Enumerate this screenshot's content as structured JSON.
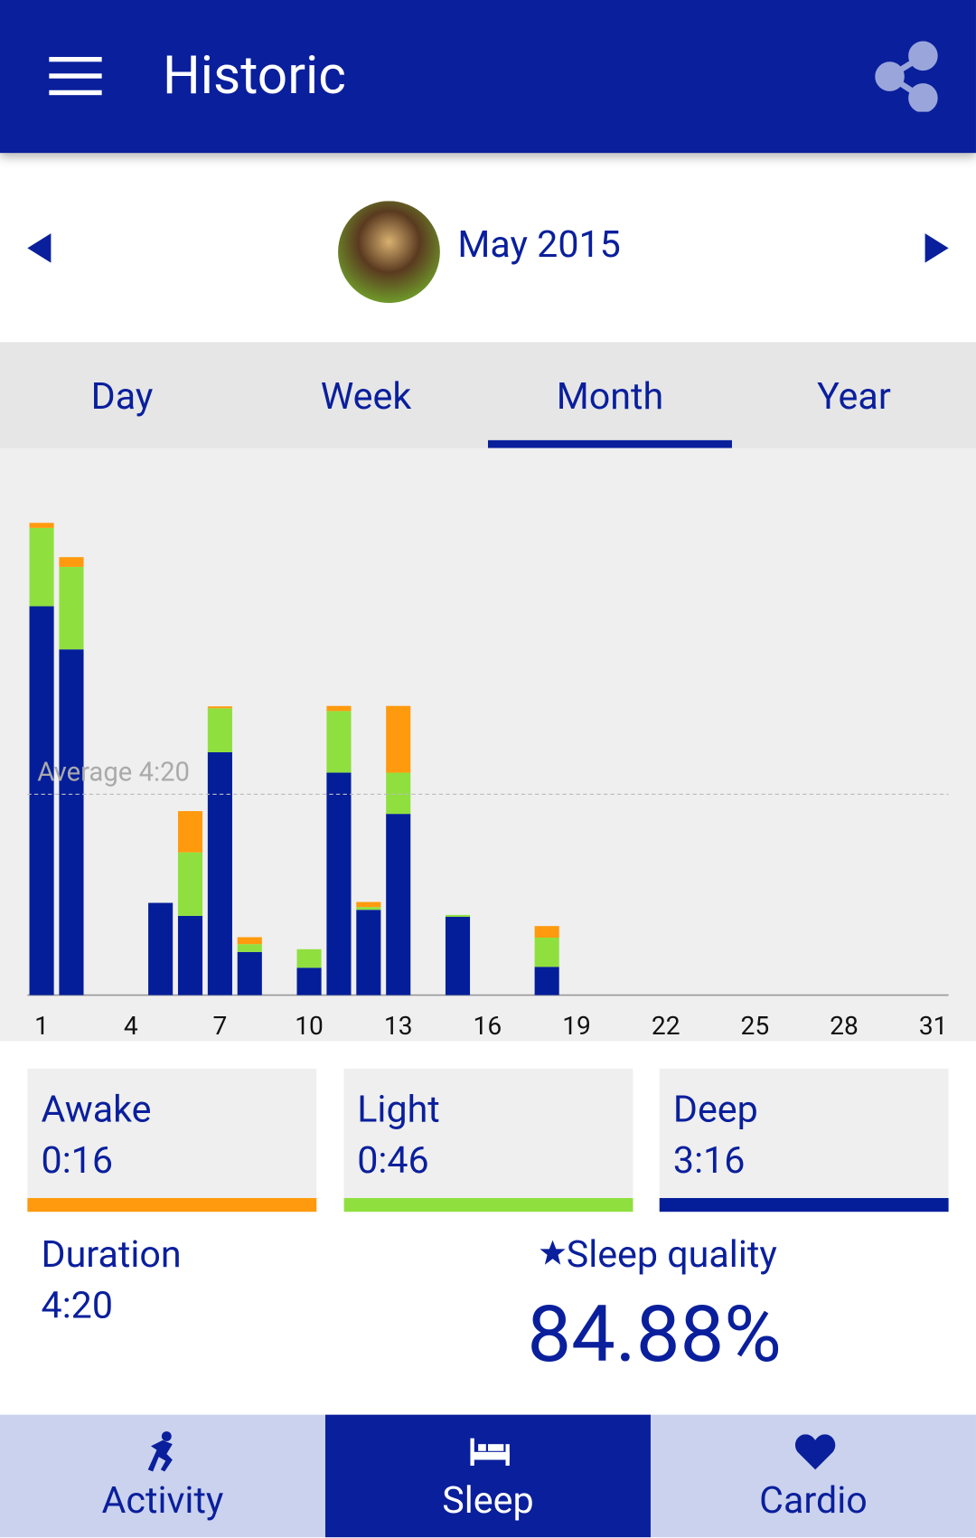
{
  "header": {
    "title": "Historic"
  },
  "date_nav": {
    "label": "May 2015"
  },
  "tabs": {
    "items": [
      "Day",
      "Week",
      "Month",
      "Year"
    ],
    "selected": 2
  },
  "chart_data": {
    "type": "bar",
    "stacked": true,
    "categories": [
      1,
      null,
      null,
      4,
      null,
      null,
      7,
      null,
      null,
      10,
      null,
      null,
      13,
      null,
      null,
      16,
      null,
      null,
      19,
      null,
      null,
      22,
      null,
      null,
      25,
      null,
      null,
      28,
      null,
      null,
      31
    ],
    "series": [
      {
        "color": "#041e9a",
        "values": [
          8.39,
          7.46,
          null,
          null,
          1.99,
          1.71,
          5.24,
          0.93,
          null,
          0.59,
          4.8,
          1.84,
          3.91,
          null,
          1.69,
          null,
          null,
          0.61,
          null,
          null,
          null,
          null,
          null,
          null,
          null,
          null,
          null,
          null,
          null,
          null,
          null
        ]
      },
      {
        "color": "#8fe03f",
        "values": [
          1.69,
          1.78,
          null,
          null,
          0,
          1.37,
          0.95,
          0.17,
          null,
          0.4,
          1.33,
          0.06,
          0.89,
          null,
          0.04,
          null,
          null,
          0.63,
          null,
          null,
          null,
          null,
          null,
          null,
          null,
          null,
          null,
          null,
          null,
          null,
          null
        ]
      },
      {
        "color": "#ff9a0e",
        "values": [
          0.11,
          0.21,
          null,
          null,
          0,
          0.89,
          0.04,
          0.15,
          null,
          0,
          0.11,
          0.11,
          1.44,
          null,
          0,
          null,
          null,
          0.25,
          null,
          null,
          null,
          null,
          null,
          null,
          null,
          null,
          null,
          null,
          null,
          null,
          null
        ]
      }
    ],
    "ylim": [
      0,
      11
    ],
    "average": {
      "value": 4.333,
      "label": "Average 4:20"
    }
  },
  "stats": {
    "cards": [
      {
        "label": "Awake",
        "value": "0:16",
        "color": "#ff9a0e"
      },
      {
        "label": "Light",
        "value": "0:46",
        "color": "#8fe03f"
      },
      {
        "label": "Deep",
        "value": "3:16",
        "color": "#041e9a"
      }
    ],
    "duration": {
      "label": "Duration",
      "value": "4:20"
    },
    "quality": {
      "label": "Sleep quality",
      "value": "84.88%"
    }
  },
  "bottom_nav": {
    "items": [
      "Activity",
      "Sleep",
      "Cardio"
    ],
    "selected": 1
  }
}
